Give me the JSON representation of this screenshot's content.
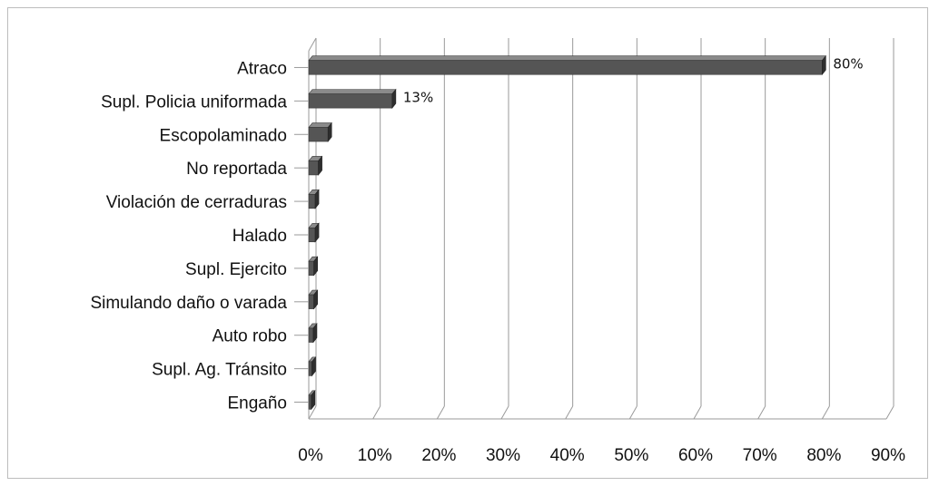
{
  "chart_data": {
    "type": "bar",
    "orientation": "horizontal",
    "style": "3d",
    "categories": [
      "Atraco",
      "Supl. Policia uniformada",
      "Escopolaminado",
      "No reportada",
      "Violación de cerraduras",
      "Halado",
      "Supl. Ejercito",
      "Simulando daño o varada",
      "Auto robo",
      "Supl. Ag. Tránsito",
      "Engaño"
    ],
    "values": [
      80,
      13,
      3,
      1.5,
      1,
      1,
      0.8,
      0.8,
      0.7,
      0.5,
      0.4
    ],
    "data_labels": [
      "80%",
      "13%",
      "",
      "",
      "",
      "",
      "",
      "",
      "",
      "",
      ""
    ],
    "xlim": [
      0,
      90
    ],
    "x_ticks": [
      0,
      10,
      20,
      30,
      40,
      50,
      60,
      70,
      80,
      90
    ],
    "x_tick_labels": [
      "0%",
      "10%",
      "20%",
      "30%",
      "40%",
      "50%",
      "60%",
      "70%",
      "80%",
      "90%"
    ],
    "title": "",
    "xlabel": "",
    "ylabel": "",
    "grid": true,
    "legend": "none",
    "colors": {
      "bar": "#555555",
      "bar_top": "#8a8a8a",
      "bar_end": "#2e2e2e",
      "grid": "#9a9a9a",
      "frame": "#bdbdbd"
    }
  }
}
